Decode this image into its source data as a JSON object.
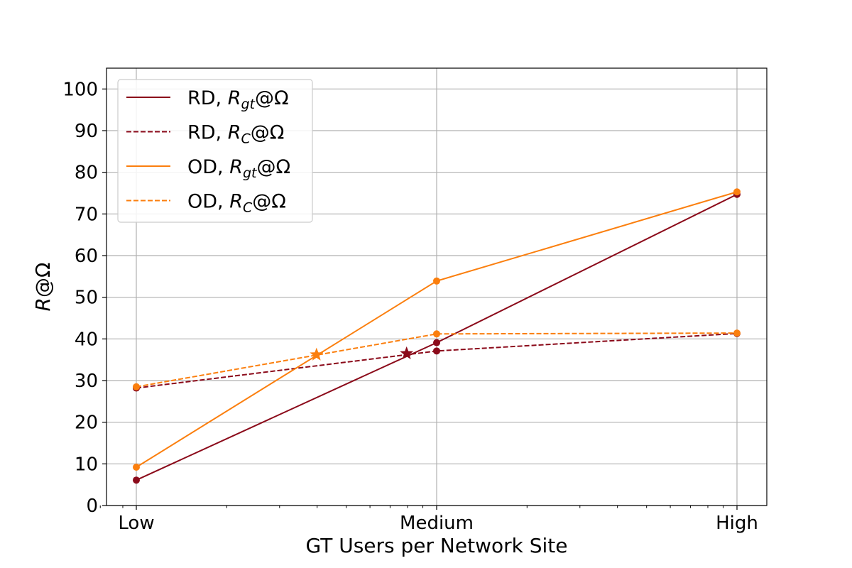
{
  "chart_data": {
    "type": "line",
    "categories": [
      "Low",
      "Medium",
      "High"
    ],
    "xlabel": "GT Users per Network Site",
    "ylabel": "R@Ω",
    "ylim": [
      0,
      105
    ],
    "yticks": [
      0,
      10,
      20,
      30,
      40,
      50,
      60,
      70,
      80,
      90,
      100
    ],
    "grid": true,
    "legend_position": "top-left",
    "series": [
      {
        "name": "RD, R_gt@Ω",
        "legend_main": "RD, ",
        "legend_var": "R",
        "legend_sub": "gt",
        "legend_suffix": "@Ω",
        "color": "#8b0a1a",
        "style": "solid",
        "values": [
          6.1,
          39.1,
          74.7
        ]
      },
      {
        "name": "RD, R_C@Ω",
        "legend_main": "RD, ",
        "legend_var": "R",
        "legend_sub": "C",
        "legend_suffix": "@Ω",
        "color": "#8b0a1a",
        "style": "dashed",
        "values": [
          28.2,
          37.1,
          41.3
        ]
      },
      {
        "name": "OD, R_gt@Ω",
        "legend_main": "OD, ",
        "legend_var": "R",
        "legend_sub": "gt",
        "legend_suffix": "@Ω",
        "color": "#fb7f0e",
        "style": "solid",
        "values": [
          9.2,
          53.9,
          75.3
        ]
      },
      {
        "name": "OD, R_C@Ω",
        "legend_main": "OD, ",
        "legend_var": "R",
        "legend_sub": "C",
        "legend_suffix": "@Ω",
        "color": "#fb7f0e",
        "style": "dashed",
        "values": [
          28.5,
          41.2,
          41.4
        ]
      }
    ],
    "intersections": [
      {
        "series_color": "#8b0a1a",
        "x_fraction": 0.9,
        "y": 36.5
      },
      {
        "series_color": "#fb7f0e",
        "x_fraction": 0.6,
        "y": 36.2
      }
    ]
  }
}
